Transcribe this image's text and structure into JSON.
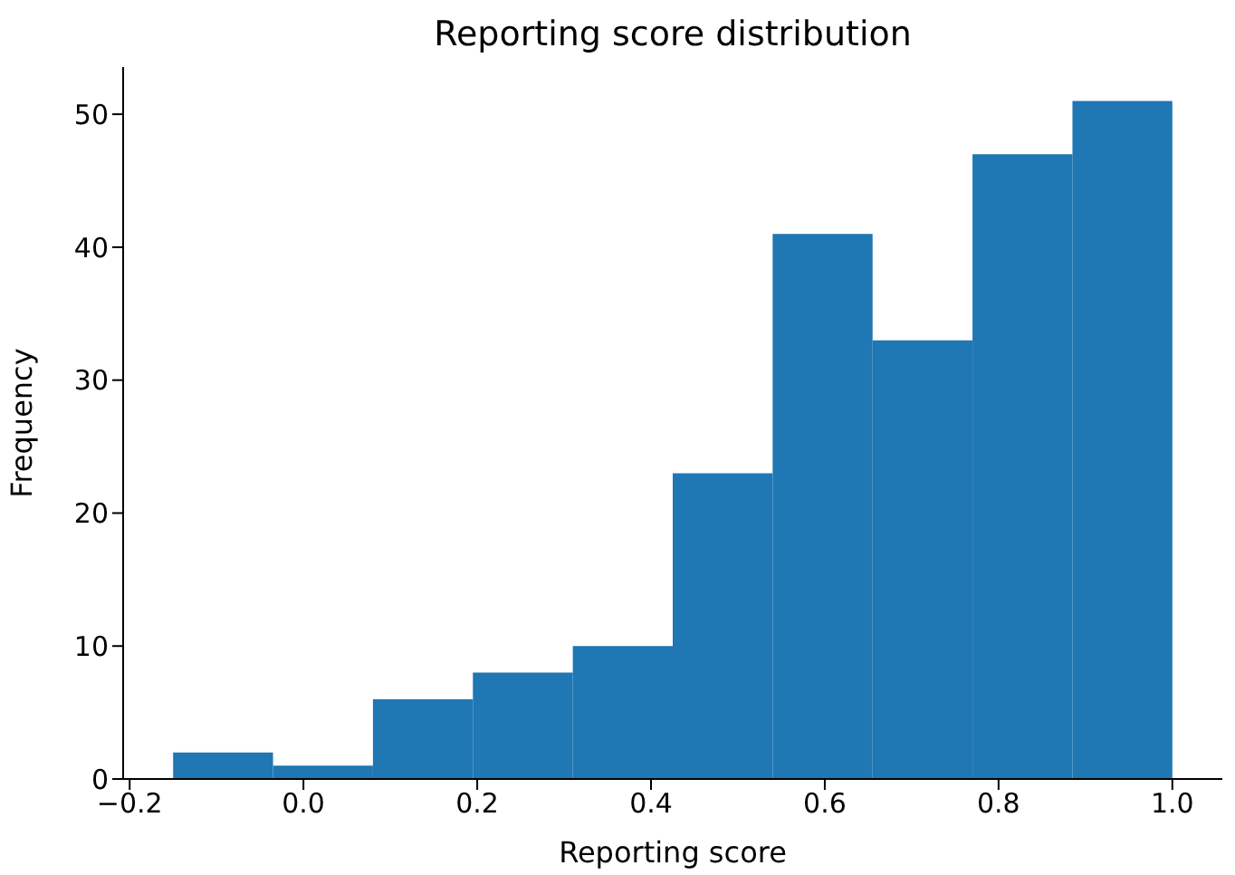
{
  "chart_data": {
    "type": "histogram",
    "title": "Reporting score distribution",
    "xlabel": "Reporting score",
    "ylabel": "Frequency",
    "bins": [
      -0.15,
      -0.035,
      0.08,
      0.195,
      0.31,
      0.425,
      0.54,
      0.655,
      0.77,
      0.885,
      1.0
    ],
    "values": [
      2,
      1,
      6,
      8,
      10,
      23,
      41,
      33,
      47,
      51
    ],
    "color": "#1f77b4",
    "xlim": [
      -0.2075,
      1.0575
    ],
    "xticks": [
      {
        "value": -0.2,
        "label": "−0.2"
      },
      {
        "value": 0,
        "label": "0.0"
      },
      {
        "value": 0.2,
        "label": "0.2"
      },
      {
        "value": 0.4,
        "label": "0.4"
      },
      {
        "value": 0.6,
        "label": "0.6"
      },
      {
        "value": 0.8,
        "label": "0.8"
      },
      {
        "value": 1,
        "label": "1.0"
      }
    ],
    "ylim": [
      0,
      53.55
    ],
    "yticks": [
      0,
      10,
      20,
      30,
      40,
      50
    ],
    "grid": false
  }
}
